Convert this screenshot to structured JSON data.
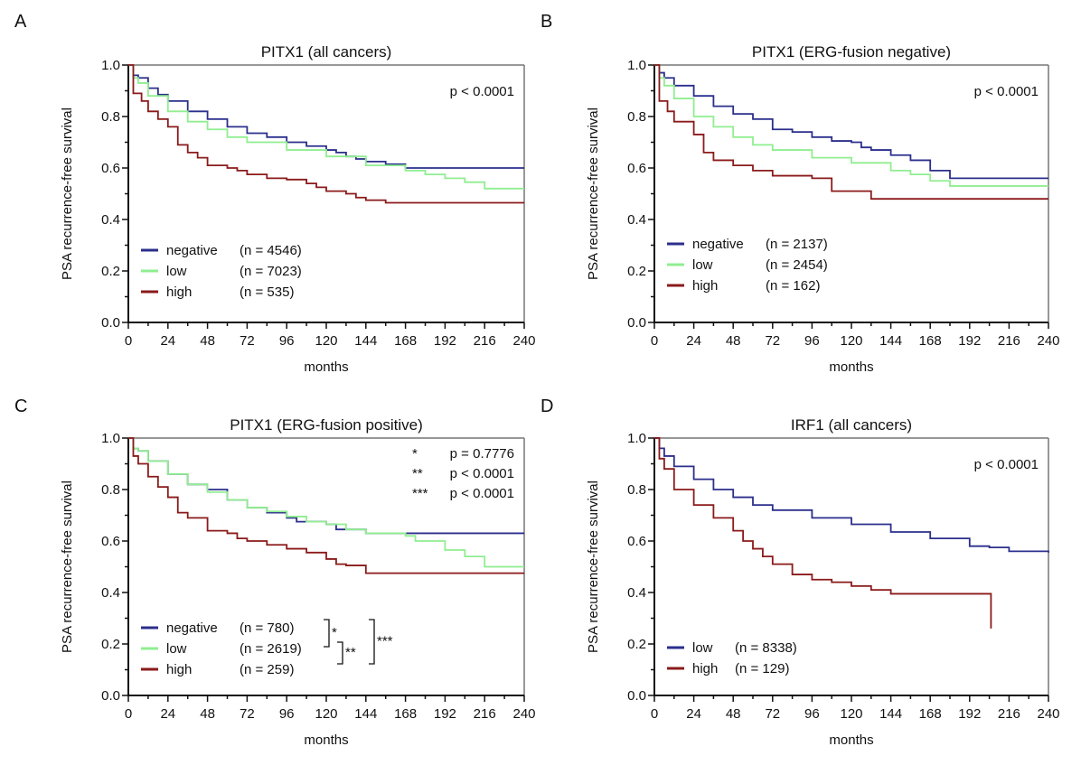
{
  "chart_data": [
    {
      "type": "line",
      "panel_label": "A",
      "title": "PITX1 (all cancers)",
      "xlabel": "months",
      "ylabel": "PSA recurrence-free survival",
      "xlim": [
        0,
        240
      ],
      "ylim": [
        0,
        1
      ],
      "xticks": [
        "0",
        "24",
        "48",
        "72",
        "96",
        "120",
        "144",
        "168",
        "192",
        "216",
        "240"
      ],
      "yticks": [
        "0.0",
        "0.2",
        "0.4",
        "0.6",
        "0.8",
        "1.0"
      ],
      "pvalues": [
        {
          "star": "",
          "text": "p < 0.0001"
        }
      ],
      "series": [
        {
          "name": "negative",
          "n_label": "(n = 4546)",
          "color": "#2b2f8c",
          "points": [
            [
              0,
              1
            ],
            [
              3,
              0.96
            ],
            [
              6,
              0.95
            ],
            [
              12,
              0.91
            ],
            [
              18,
              0.885
            ],
            [
              24,
              0.86
            ],
            [
              36,
              0.82
            ],
            [
              48,
              0.79
            ],
            [
              60,
              0.76
            ],
            [
              72,
              0.735
            ],
            [
              84,
              0.72
            ],
            [
              96,
              0.7
            ],
            [
              108,
              0.685
            ],
            [
              120,
              0.67
            ],
            [
              126,
              0.66
            ],
            [
              132,
              0.645
            ],
            [
              138,
              0.635
            ],
            [
              144,
              0.625
            ],
            [
              156,
              0.615
            ],
            [
              168,
              0.6
            ],
            [
              240,
              0.6
            ]
          ]
        },
        {
          "name": "low",
          "n_label": "(n = 7023)",
          "color": "#90ee90",
          "points": [
            [
              0,
              1
            ],
            [
              3,
              0.95
            ],
            [
              6,
              0.93
            ],
            [
              12,
              0.88
            ],
            [
              24,
              0.82
            ],
            [
              36,
              0.78
            ],
            [
              48,
              0.75
            ],
            [
              60,
              0.72
            ],
            [
              72,
              0.7
            ],
            [
              96,
              0.67
            ],
            [
              120,
              0.645
            ],
            [
              144,
              0.61
            ],
            [
              168,
              0.59
            ],
            [
              180,
              0.575
            ],
            [
              192,
              0.56
            ],
            [
              204,
              0.545
            ],
            [
              216,
              0.52
            ],
            [
              240,
              0.52
            ]
          ]
        },
        {
          "name": "high",
          "n_label": "(n = 535)",
          "color": "#8b1a1a",
          "points": [
            [
              0,
              1
            ],
            [
              3,
              0.89
            ],
            [
              8,
              0.86
            ],
            [
              12,
              0.82
            ],
            [
              18,
              0.79
            ],
            [
              24,
              0.76
            ],
            [
              30,
              0.69
            ],
            [
              36,
              0.66
            ],
            [
              42,
              0.64
            ],
            [
              48,
              0.61
            ],
            [
              60,
              0.6
            ],
            [
              66,
              0.59
            ],
            [
              72,
              0.575
            ],
            [
              84,
              0.56
            ],
            [
              96,
              0.555
            ],
            [
              108,
              0.54
            ],
            [
              114,
              0.525
            ],
            [
              120,
              0.51
            ],
            [
              132,
              0.5
            ],
            [
              138,
              0.485
            ],
            [
              144,
              0.475
            ],
            [
              156,
              0.465
            ],
            [
              240,
              0.465
            ]
          ]
        }
      ]
    },
    {
      "type": "line",
      "panel_label": "B",
      "title": "PITX1 (ERG-fusion negative)",
      "xlabel": "months",
      "ylabel": "PSA recurrence-free survival",
      "xlim": [
        0,
        240
      ],
      "ylim": [
        0,
        1
      ],
      "xticks": [
        "0",
        "24",
        "48",
        "72",
        "96",
        "120",
        "144",
        "168",
        "192",
        "216",
        "240"
      ],
      "yticks": [
        "0.0",
        "0.2",
        "0.4",
        "0.6",
        "0.8",
        "1.0"
      ],
      "pvalues": [
        {
          "star": "",
          "text": "p < 0.0001"
        }
      ],
      "series": [
        {
          "name": "negative",
          "n_label": "(n = 2137)",
          "color": "#2b2f8c",
          "points": [
            [
              0,
              1
            ],
            [
              3,
              0.97
            ],
            [
              6,
              0.95
            ],
            [
              12,
              0.92
            ],
            [
              24,
              0.88
            ],
            [
              36,
              0.84
            ],
            [
              48,
              0.81
            ],
            [
              60,
              0.79
            ],
            [
              72,
              0.75
            ],
            [
              84,
              0.74
            ],
            [
              96,
              0.72
            ],
            [
              108,
              0.705
            ],
            [
              120,
              0.7
            ],
            [
              126,
              0.68
            ],
            [
              132,
              0.67
            ],
            [
              144,
              0.65
            ],
            [
              156,
              0.63
            ],
            [
              168,
              0.59
            ],
            [
              180,
              0.56
            ],
            [
              240,
              0.56
            ]
          ]
        },
        {
          "name": "low",
          "n_label": "(n = 2454)",
          "color": "#90ee90",
          "points": [
            [
              0,
              1
            ],
            [
              3,
              0.95
            ],
            [
              6,
              0.92
            ],
            [
              12,
              0.87
            ],
            [
              24,
              0.8
            ],
            [
              36,
              0.76
            ],
            [
              48,
              0.72
            ],
            [
              60,
              0.69
            ],
            [
              72,
              0.67
            ],
            [
              96,
              0.64
            ],
            [
              120,
              0.62
            ],
            [
              144,
              0.59
            ],
            [
              156,
              0.575
            ],
            [
              168,
              0.55
            ],
            [
              180,
              0.53
            ],
            [
              240,
              0.53
            ]
          ]
        },
        {
          "name": "high",
          "n_label": "(n = 162)",
          "color": "#8b1a1a",
          "points": [
            [
              0,
              1
            ],
            [
              3,
              0.86
            ],
            [
              8,
              0.82
            ],
            [
              12,
              0.78
            ],
            [
              24,
              0.73
            ],
            [
              30,
              0.66
            ],
            [
              36,
              0.63
            ],
            [
              48,
              0.61
            ],
            [
              60,
              0.59
            ],
            [
              72,
              0.57
            ],
            [
              96,
              0.56
            ],
            [
              108,
              0.51
            ],
            [
              132,
              0.48
            ],
            [
              240,
              0.48
            ]
          ]
        }
      ]
    },
    {
      "type": "line",
      "panel_label": "C",
      "title": "PITX1 (ERG-fusion positive)",
      "xlabel": "months",
      "ylabel": "PSA recurrence-free survival",
      "xlim": [
        0,
        240
      ],
      "ylim": [
        0,
        1
      ],
      "xticks": [
        "0",
        "24",
        "48",
        "72",
        "96",
        "120",
        "144",
        "168",
        "192",
        "216",
        "240"
      ],
      "yticks": [
        "0.0",
        "0.2",
        "0.4",
        "0.6",
        "0.8",
        "1.0"
      ],
      "pvalues": [
        {
          "star": "*",
          "text": "p = 0.7776"
        },
        {
          "star": "**",
          "text": "p < 0.0001"
        },
        {
          "star": "***",
          "text": "p < 0.0001"
        }
      ],
      "brackets": [
        "*",
        "**",
        "***"
      ],
      "series": [
        {
          "name": "negative",
          "n_label": "(n = 780)",
          "color": "#2b2f8c",
          "points": [
            [
              0,
              1
            ],
            [
              3,
              0.96
            ],
            [
              6,
              0.95
            ],
            [
              12,
              0.91
            ],
            [
              24,
              0.86
            ],
            [
              36,
              0.82
            ],
            [
              48,
              0.8
            ],
            [
              60,
              0.76
            ],
            [
              72,
              0.73
            ],
            [
              84,
              0.71
            ],
            [
              96,
              0.69
            ],
            [
              102,
              0.675
            ],
            [
              120,
              0.665
            ],
            [
              126,
              0.645
            ],
            [
              144,
              0.63
            ],
            [
              240,
              0.63
            ]
          ]
        },
        {
          "name": "low",
          "n_label": "(n = 2619)",
          "color": "#90ee90",
          "points": [
            [
              0,
              1
            ],
            [
              3,
              0.96
            ],
            [
              6,
              0.95
            ],
            [
              12,
              0.91
            ],
            [
              24,
              0.86
            ],
            [
              36,
              0.82
            ],
            [
              48,
              0.79
            ],
            [
              60,
              0.76
            ],
            [
              72,
              0.73
            ],
            [
              84,
              0.715
            ],
            [
              96,
              0.695
            ],
            [
              108,
              0.675
            ],
            [
              120,
              0.665
            ],
            [
              132,
              0.645
            ],
            [
              144,
              0.63
            ],
            [
              168,
              0.62
            ],
            [
              174,
              0.6
            ],
            [
              192,
              0.565
            ],
            [
              204,
              0.54
            ],
            [
              216,
              0.5
            ],
            [
              240,
              0.5
            ]
          ]
        },
        {
          "name": "high",
          "n_label": "(n = 259)",
          "color": "#8b1a1a",
          "points": [
            [
              0,
              1
            ],
            [
              3,
              0.93
            ],
            [
              6,
              0.9
            ],
            [
              12,
              0.85
            ],
            [
              18,
              0.81
            ],
            [
              24,
              0.77
            ],
            [
              30,
              0.71
            ],
            [
              36,
              0.69
            ],
            [
              48,
              0.64
            ],
            [
              60,
              0.63
            ],
            [
              66,
              0.61
            ],
            [
              72,
              0.6
            ],
            [
              84,
              0.585
            ],
            [
              96,
              0.57
            ],
            [
              108,
              0.555
            ],
            [
              120,
              0.53
            ],
            [
              126,
              0.51
            ],
            [
              132,
              0.505
            ],
            [
              144,
              0.475
            ],
            [
              240,
              0.475
            ]
          ]
        }
      ]
    },
    {
      "type": "line",
      "panel_label": "D",
      "title": "IRF1 (all cancers)",
      "xlabel": "months",
      "ylabel": "PSA recurrence-free survival",
      "xlim": [
        0,
        240
      ],
      "ylim": [
        0,
        1
      ],
      "xticks": [
        "0",
        "24",
        "48",
        "72",
        "96",
        "120",
        "144",
        "168",
        "192",
        "216",
        "240"
      ],
      "yticks": [
        "0.0",
        "0.2",
        "0.4",
        "0.6",
        "0.8",
        "1.0"
      ],
      "pvalues": [
        {
          "star": "",
          "text": "p < 0.0001"
        }
      ],
      "series": [
        {
          "name": "low",
          "n_label": "(n = 8338)",
          "color": "#2b2f8c",
          "points": [
            [
              0,
              1
            ],
            [
              3,
              0.96
            ],
            [
              6,
              0.93
            ],
            [
              12,
              0.89
            ],
            [
              24,
              0.84
            ],
            [
              36,
              0.8
            ],
            [
              48,
              0.77
            ],
            [
              60,
              0.74
            ],
            [
              72,
              0.72
            ],
            [
              96,
              0.69
            ],
            [
              120,
              0.665
            ],
            [
              144,
              0.635
            ],
            [
              168,
              0.61
            ],
            [
              192,
              0.58
            ],
            [
              204,
              0.575
            ],
            [
              216,
              0.56
            ],
            [
              240,
              0.555
            ]
          ]
        },
        {
          "name": "high",
          "n_label": "(n = 129)",
          "color": "#8b1a1a",
          "points": [
            [
              0,
              1
            ],
            [
              3,
              0.92
            ],
            [
              6,
              0.88
            ],
            [
              12,
              0.8
            ],
            [
              24,
              0.74
            ],
            [
              36,
              0.69
            ],
            [
              48,
              0.64
            ],
            [
              54,
              0.6
            ],
            [
              60,
              0.57
            ],
            [
              66,
              0.54
            ],
            [
              72,
              0.51
            ],
            [
              84,
              0.47
            ],
            [
              96,
              0.45
            ],
            [
              108,
              0.44
            ],
            [
              120,
              0.425
            ],
            [
              132,
              0.41
            ],
            [
              144,
              0.395
            ],
            [
              205,
              0.395
            ],
            [
              205,
              0.26
            ]
          ]
        }
      ]
    }
  ]
}
